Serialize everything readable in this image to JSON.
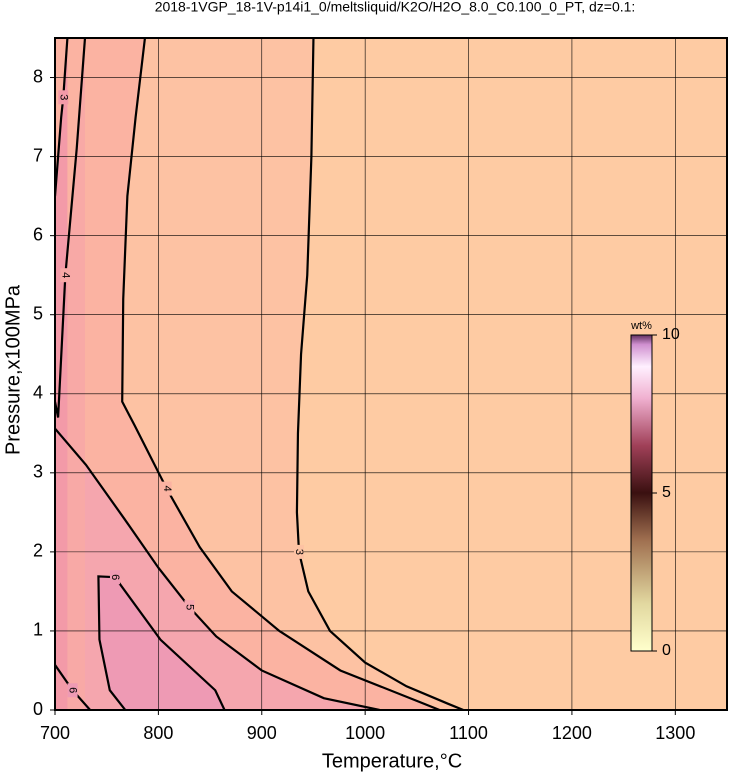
{
  "chart_data": {
    "type": "contour",
    "title": "2018-1VGP_18-1V-p14i1_0/meltsliquid/K2O/H2O_8.0_C0.100_0_PT, dz=0.1:",
    "xlabel": "Temperature,°C",
    "ylabel": "Pressure,x100MPa",
    "xlim": [
      700,
      1350
    ],
    "ylim": [
      0,
      8.5
    ],
    "xticks": [
      700,
      800,
      900,
      1000,
      1100,
      1200,
      1300
    ],
    "yticks": [
      0,
      1,
      2,
      3,
      4,
      5,
      6,
      7,
      8
    ],
    "grid": true,
    "background": "#fecba3",
    "line_color": "#000000",
    "contours": [
      {
        "level": 3,
        "fill": "#fdc2a3",
        "x": [
          950,
          948,
          944,
          938,
          935,
          934,
          936,
          945,
          966,
          1000,
          1040,
          1080,
          1095
        ],
        "y": [
          8.5,
          7,
          5.5,
          4.5,
          3.5,
          2.5,
          2,
          1.5,
          1,
          0.6,
          0.3,
          0.08,
          0
        ]
      },
      {
        "level": 4,
        "fill": "#fbb3a2",
        "x": [
          787,
          778,
          770,
          766,
          765,
          777,
          808,
          840,
          871,
          917,
          976,
          1053,
          1072
        ],
        "y": [
          8.5,
          7.5,
          6.5,
          5.2,
          3.9,
          3.6,
          2.8,
          2.06,
          1.5,
          1,
          0.5,
          0.1,
          0
        ]
      },
      {
        "level": 5,
        "fill": "#f5a6ae",
        "x": [
          700,
          730,
          767,
          800,
          830,
          856,
          900,
          960,
          1014
        ],
        "y": [
          3.56,
          3.1,
          2.42,
          1.8,
          1.3,
          0.93,
          0.5,
          0.15,
          0
        ]
      },
      {
        "level": 6,
        "fill": "#ee9ab4",
        "x": [
          768,
          753,
          743,
          742,
          758,
          802,
          855,
          864
        ],
        "y": [
          0,
          0.25,
          0.89,
          1.69,
          1.68,
          0.89,
          0.25,
          0
        ]
      },
      {
        "level": 6,
        "fill": "#ee9ab4",
        "x": [
          700,
          717,
          734
        ],
        "y": [
          0.57,
          0.25,
          0
        ]
      },
      {
        "level": 4,
        "fill": "#f8a9a6",
        "x": [
          700,
          703,
          710,
          721,
          729
        ],
        "y": [
          3.9,
          3.7,
          5.5,
          7.1,
          8.5
        ]
      },
      {
        "level": 3,
        "fill": "#f39aa8",
        "x": [
          700,
          706,
          708,
          712
        ],
        "y": [
          6.5,
          7.5,
          7.75,
          8.5
        ]
      }
    ],
    "colorbar": {
      "label": "wt%",
      "lim": [
        0,
        10
      ],
      "ticks": [
        0,
        5,
        10
      ]
    }
  }
}
